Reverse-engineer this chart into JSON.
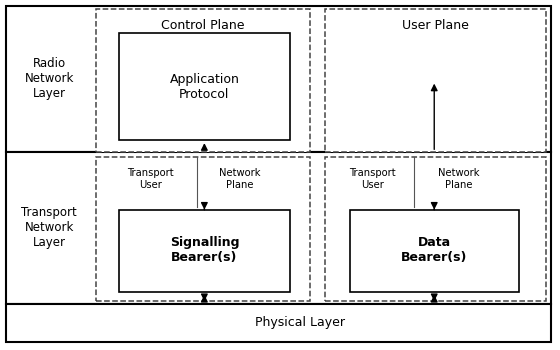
{
  "bg_color": "#ffffff",
  "text_color": "#000000",
  "row1_label": "Radio\nNetwork\nLayer",
  "row2_label": "Transport\nNetwork\nLayer",
  "cp_label": "Control Plane",
  "up_label": "User Plane",
  "app_protocol_label": "Application\nProtocol",
  "signalling_bearer_label": "Signalling\nBearer(s)",
  "data_bearer_label": "Data\nBearer(s)",
  "transport_user_left": "Transport\nUser",
  "network_plane_left": "Network\nPlane",
  "transport_user_right": "Transport\nUser",
  "network_plane_right": "Network\nPlane",
  "physical_layer_label": "Physical Layer"
}
